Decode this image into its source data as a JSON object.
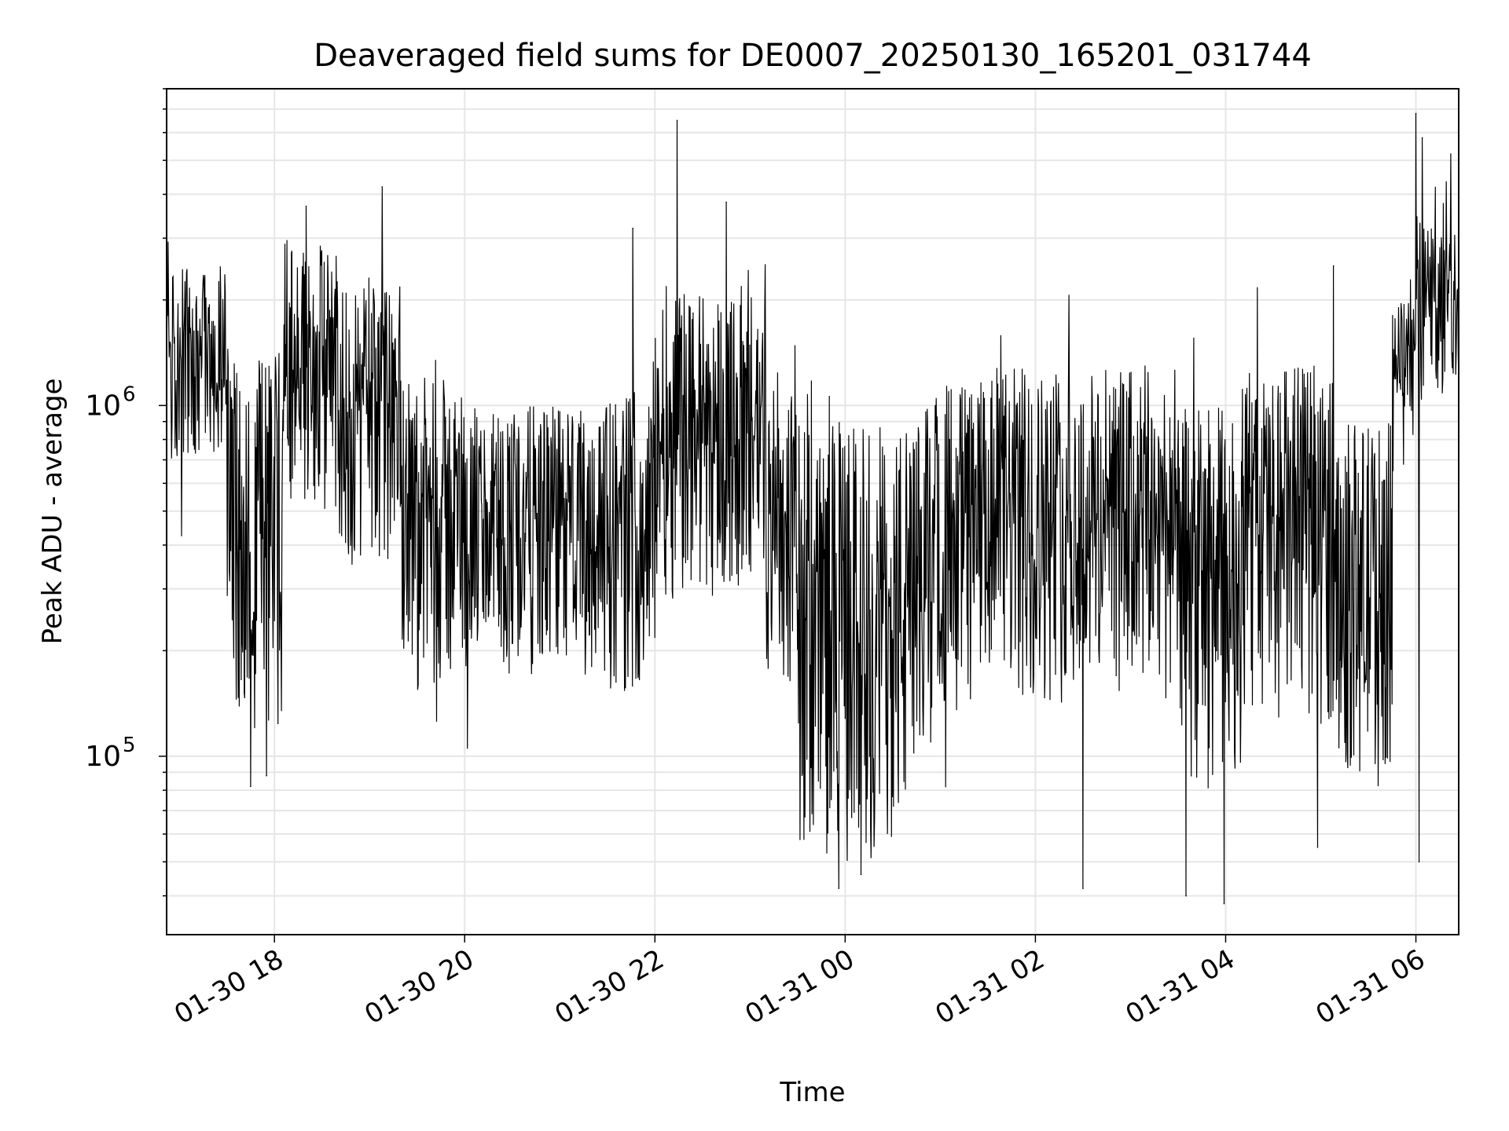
{
  "chart_data": {
    "type": "line",
    "title": "Deaveraged field sums for DE0007_20250130_165201_031744",
    "xlabel": "Time",
    "ylabel": "Peak ADU - average",
    "x_type": "datetime",
    "x_range": [
      "2025-01-30T16:52",
      "2025-01-31T06:27"
    ],
    "x_ticks": [
      {
        "value": "2025-01-30T18:00",
        "label": "01-30 18"
      },
      {
        "value": "2025-01-30T20:00",
        "label": "01-30 20"
      },
      {
        "value": "2025-01-30T22:00",
        "label": "01-30 22"
      },
      {
        "value": "2025-01-31T00:00",
        "label": "01-31 00"
      },
      {
        "value": "2025-01-31T02:00",
        "label": "01-31 02"
      },
      {
        "value": "2025-01-31T04:00",
        "label": "01-31 04"
      },
      {
        "value": "2025-01-31T06:00",
        "label": "01-31 06"
      }
    ],
    "y_scale": "log",
    "ylim": [
      31000,
      8000000
    ],
    "y_ticks": [
      {
        "value": 100000,
        "base": "10",
        "exp": "5"
      },
      {
        "value": 1000000,
        "base": "10",
        "exp": "6"
      }
    ],
    "grid": true,
    "line_color": "#000000",
    "grid_color": "#e6e6e6",
    "series": [
      {
        "segments": [
          {
            "start": "2025-01-30T16:52",
            "end": "2025-01-30T17:30",
            "low": 700000,
            "high": 2500000
          },
          {
            "start": "2025-01-30T17:30",
            "end": "2025-01-30T18:05",
            "low": 120000,
            "high": 1500000
          },
          {
            "start": "2025-01-30T18:05",
            "end": "2025-01-30T18:40",
            "low": 500000,
            "high": 3000000
          },
          {
            "start": "2025-01-30T18:40",
            "end": "2025-01-30T19:20",
            "low": 350000,
            "high": 2200000
          },
          {
            "start": "2025-01-30T19:20",
            "end": "2025-01-30T20:00",
            "low": 150000,
            "high": 1200000
          },
          {
            "start": "2025-01-30T20:00",
            "end": "2025-01-30T21:30",
            "low": 170000,
            "high": 1000000
          },
          {
            "start": "2025-01-30T21:30",
            "end": "2025-01-30T22:00",
            "low": 150000,
            "high": 1100000
          },
          {
            "start": "2025-01-30T22:00",
            "end": "2025-01-30T23:10",
            "low": 280000,
            "high": 2200000
          },
          {
            "start": "2025-01-30T23:10",
            "end": "2025-01-30T23:30",
            "low": 150000,
            "high": 1200000
          },
          {
            "start": "2025-01-30T23:30",
            "end": "2025-01-31T00:20",
            "low": 50000,
            "high": 900000
          },
          {
            "start": "2025-01-31T00:20",
            "end": "2025-01-31T00:50",
            "low": 55000,
            "high": 900000
          },
          {
            "start": "2025-01-31T00:50",
            "end": "2025-01-31T01:30",
            "low": 130000,
            "high": 1200000
          },
          {
            "start": "2025-01-31T01:30",
            "end": "2025-01-31T03:30",
            "low": 140000,
            "high": 1300000
          },
          {
            "start": "2025-01-31T03:30",
            "end": "2025-01-31T04:10",
            "low": 80000,
            "high": 1000000
          },
          {
            "start": "2025-01-31T04:10",
            "end": "2025-01-31T05:10",
            "low": 120000,
            "high": 1300000
          },
          {
            "start": "2025-01-31T05:10",
            "end": "2025-01-31T05:45",
            "low": 90000,
            "high": 900000
          },
          {
            "start": "2025-01-31T05:45",
            "end": "2025-01-31T06:00",
            "low": 900000,
            "high": 2000000
          },
          {
            "start": "2025-01-31T06:00",
            "end": "2025-01-31T06:27",
            "low": 1000000,
            "high": 3500000
          }
        ],
        "peaks": [
          {
            "x": "2025-01-30T22:14",
            "y": 6500000
          },
          {
            "x": "2025-01-31T06:00",
            "y": 6800000
          },
          {
            "x": "2025-01-31T06:04",
            "y": 5800000
          },
          {
            "x": "2025-01-30T19:08",
            "y": 4200000
          },
          {
            "x": "2025-01-30T22:45",
            "y": 3800000
          },
          {
            "x": "2025-01-30T18:20",
            "y": 3700000
          },
          {
            "x": "2025-01-30T21:46",
            "y": 3200000
          },
          {
            "x": "2025-01-31T05:08",
            "y": 2500000
          }
        ],
        "troughs": [
          {
            "x": "2025-01-30T17:45",
            "y": 82000
          },
          {
            "x": "2025-01-30T17:55",
            "y": 88000
          },
          {
            "x": "2025-01-30T23:56",
            "y": 42000
          },
          {
            "x": "2025-01-31T00:10",
            "y": 46000
          },
          {
            "x": "2025-01-31T02:30",
            "y": 42000
          },
          {
            "x": "2025-01-31T03:35",
            "y": 40000
          },
          {
            "x": "2025-01-31T03:59",
            "y": 38000
          },
          {
            "x": "2025-01-31T04:58",
            "y": 55000
          },
          {
            "x": "2025-01-31T06:02",
            "y": 50000
          }
        ]
      }
    ]
  }
}
